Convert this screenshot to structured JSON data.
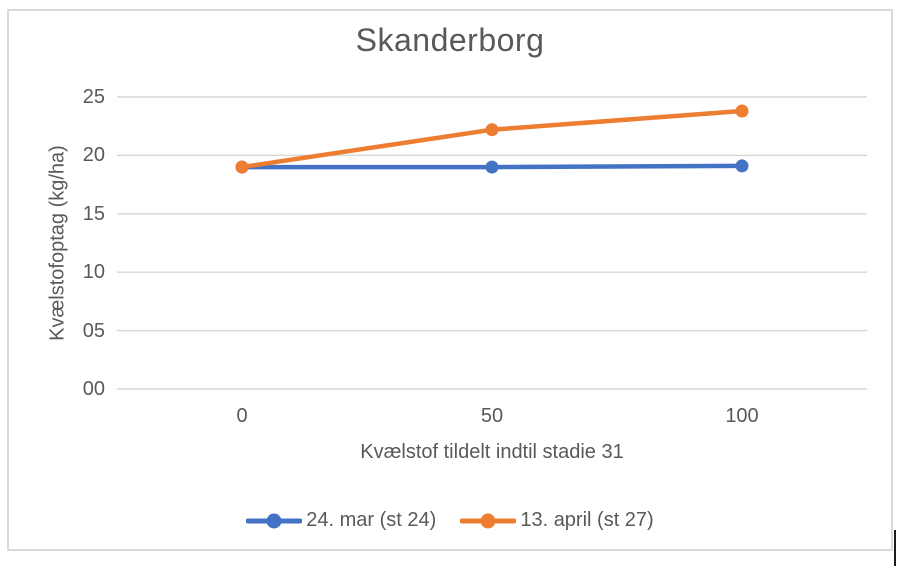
{
  "chart_data": {
    "type": "line",
    "title": "Skanderborg",
    "xlabel": "Kvælstof tildelt indtil stadie 31",
    "ylabel": "Kvælstofoptag (kg/ha)",
    "categories": [
      "0",
      "50",
      "100"
    ],
    "series": [
      {
        "name": "24. mar (st 24)",
        "color": "#4472C4",
        "values": [
          19.0,
          19.0,
          19.1
        ]
      },
      {
        "name": "13. april (st 27)",
        "color": "#ED7D31",
        "values": [
          19.0,
          22.2,
          23.8
        ]
      }
    ],
    "ylim": [
      0,
      25
    ],
    "ytick_step": 5,
    "ytick_labels": [
      "00",
      "05",
      "10",
      "15",
      "20",
      "25"
    ],
    "grid": "horizontal-only",
    "legend_position": "bottom",
    "marker": "circle"
  },
  "colors": {
    "series_blue": "#4472C4",
    "series_orange": "#ED7D31",
    "gridline": "#D9D9D9",
    "frame_border": "#D9D9D9",
    "text": "#595959",
    "background": "#FFFFFF"
  }
}
